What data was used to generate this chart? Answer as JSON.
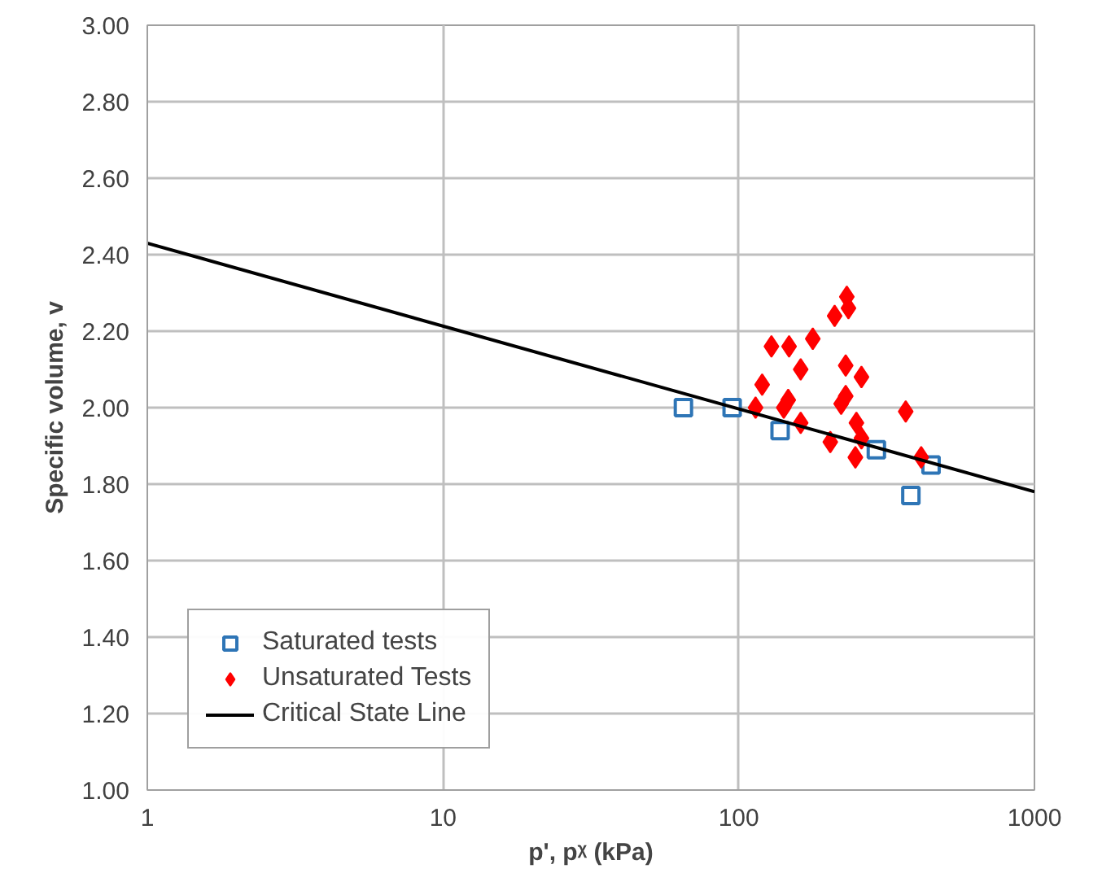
{
  "chart_data": {
    "type": "scatter",
    "xlabel": "p', pᵡ (kPa)",
    "ylabel": "Specific volume, v",
    "log": "x",
    "xlim": [
      1,
      1000
    ],
    "xticks": [
      1,
      10,
      100,
      1000
    ],
    "ylim": [
      1.0,
      3.0
    ],
    "yticks": [
      {
        "value": 1.0,
        "label": "1.00"
      },
      {
        "value": 1.2,
        "label": "1.20"
      },
      {
        "value": 1.4,
        "label": "1.40"
      },
      {
        "value": 1.6,
        "label": "1.60"
      },
      {
        "value": 1.8,
        "label": "1.80"
      },
      {
        "value": 2.0,
        "label": "2.00"
      },
      {
        "value": 2.2,
        "label": "2.20"
      },
      {
        "value": 2.4,
        "label": "2.40"
      },
      {
        "value": 2.6,
        "label": "2.60"
      },
      {
        "value": 2.8,
        "label": "2.80"
      },
      {
        "value": 3.0,
        "label": "3.00"
      }
    ],
    "grid": true,
    "legend": "bottom left",
    "series": [
      {
        "name": "Saturated tests",
        "marker": "square",
        "color": "#2e75b6",
        "x": [
          65,
          95,
          138,
          292,
          447,
          382
        ],
        "values": [
          2.0,
          2.0,
          1.94,
          1.89,
          1.85,
          1.77
        ]
      },
      {
        "name": "Unsaturated Tests",
        "marker": "diamond",
        "color": "#ff0000",
        "x": [
          232,
          235,
          211,
          178,
          129,
          145,
          148,
          162,
          230,
          260,
          120,
          147,
          142,
          114,
          230,
          222,
          367,
          162,
          250,
          260,
          204,
          248,
          414
        ],
        "values": [
          2.29,
          2.26,
          2.24,
          2.18,
          2.16,
          null,
          2.16,
          2.1,
          2.11,
          2.08,
          2.06,
          2.02,
          2.0,
          2.0,
          2.03,
          2.01,
          1.99,
          1.96,
          1.96,
          1.92,
          1.91,
          1.87,
          1.87
        ]
      },
      {
        "name": "Critical State Line",
        "type": "line",
        "marker": "none",
        "line_style": "solid",
        "color": "#000000",
        "x": [
          1,
          1000
        ],
        "values": [
          2.43,
          1.78
        ]
      }
    ]
  }
}
